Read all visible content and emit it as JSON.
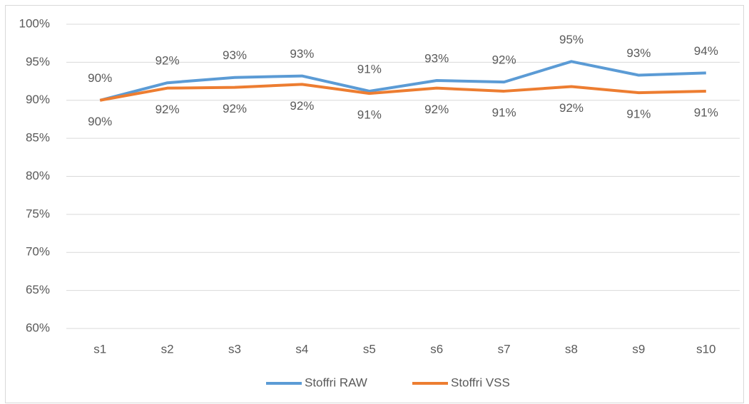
{
  "chart_data": {
    "type": "line",
    "categories": [
      "s1",
      "s2",
      "s3",
      "s4",
      "s5",
      "s6",
      "s7",
      "s8",
      "s9",
      "s10"
    ],
    "series": [
      {
        "name": "Stoffri RAW",
        "color": "#5b9bd5",
        "values": [
          90.0,
          92.3,
          93.0,
          93.2,
          91.2,
          92.6,
          92.4,
          95.1,
          93.3,
          93.6
        ],
        "value_labels": [
          "90%",
          "92%",
          "93%",
          "93%",
          "91%",
          "93%",
          "92%",
          "95%",
          "93%",
          "94%"
        ]
      },
      {
        "name": "Stoffri VSS",
        "color": "#ed7d31",
        "values": [
          90.0,
          91.6,
          91.7,
          92.1,
          90.9,
          91.6,
          91.2,
          91.8,
          91.0,
          91.2
        ],
        "value_labels": [
          "90%",
          "92%",
          "92%",
          "92%",
          "91%",
          "92%",
          "91%",
          "92%",
          "91%",
          "91%"
        ]
      }
    ],
    "ylim": [
      60,
      100
    ],
    "yticks": [
      {
        "value": 60,
        "label": "60%"
      },
      {
        "value": 65,
        "label": "65%"
      },
      {
        "value": 70,
        "label": "70%"
      },
      {
        "value": 75,
        "label": "75%"
      },
      {
        "value": 80,
        "label": "80%"
      },
      {
        "value": 85,
        "label": "85%"
      },
      {
        "value": 90,
        "label": "90%"
      },
      {
        "value": 95,
        "label": "95%"
      },
      {
        "value": 100,
        "label": "100%"
      }
    ],
    "grid": true,
    "legend": "bottom"
  }
}
